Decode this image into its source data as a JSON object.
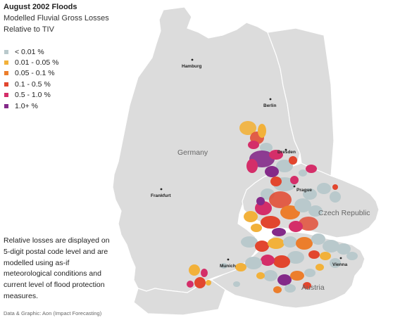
{
  "title": "August 2002 Floods",
  "subtitle_line1": "Modelled Fluvial Gross Losses",
  "subtitle_line2": "Relative to TIV",
  "legend": [
    {
      "label": "< 0.01 %",
      "color": "#b9c9cc"
    },
    {
      "label": "0.01 - 0.05 %",
      "color": "#f2b13a"
    },
    {
      "label": "0.05 - 0.1 %",
      "color": "#ec7e2c"
    },
    {
      "label": "0.1 - 0.5 %",
      "color": "#e2462e"
    },
    {
      "label": "0.5 - 1.0 %",
      "color": "#d42e69"
    },
    {
      "label": "1.0+ %",
      "color": "#842a89"
    }
  ],
  "note": "Relative losses are displayed on 5-digit postal code level and are modelled using as-if meteorological conditions and current level of flood protection measures.",
  "credit": "Data & Graphic: Aon (Impact Forecasting)",
  "countries": {
    "germany": "Germany",
    "czech": "Czech Republic",
    "austria": "Austria"
  },
  "cities": {
    "hamburg": "Hamburg",
    "berlin": "Berlin",
    "dresden": "Dresden",
    "prague": "Prague",
    "frankfurt": "Frankfurt",
    "munich": "Munich",
    "vienna": "Vienna"
  },
  "colors": {
    "land": "#dcdcdc",
    "border": "#ffffff",
    "background": "#ffffff"
  }
}
